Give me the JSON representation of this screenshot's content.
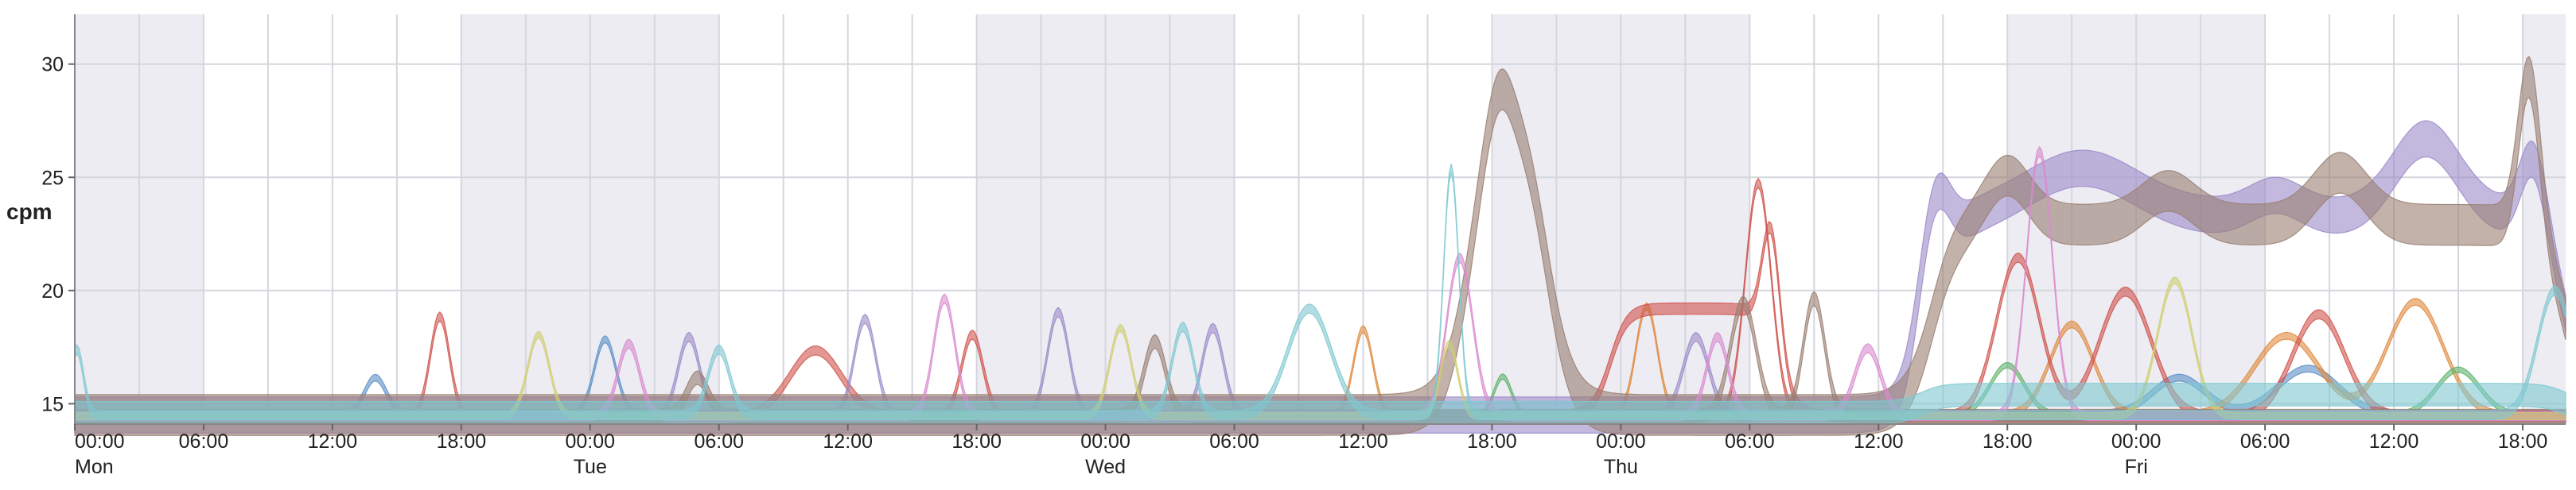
{
  "chart_data": {
    "type": "area",
    "title": "",
    "ylabel": "cpm",
    "xlabel": "",
    "x_unit": "hours since Monday 00:00",
    "xlim": [
      0,
      116
    ],
    "ylim": [
      14.1,
      32.2
    ],
    "yticks": [
      15,
      20,
      25,
      30
    ],
    "xticks": [
      {
        "hour": 0,
        "label": "00:00",
        "day": "Mon"
      },
      {
        "hour": 6,
        "label": "06:00",
        "day": ""
      },
      {
        "hour": 12,
        "label": "12:00",
        "day": ""
      },
      {
        "hour": 18,
        "label": "18:00",
        "day": ""
      },
      {
        "hour": 24,
        "label": "00:00",
        "day": "Tue"
      },
      {
        "hour": 30,
        "label": "06:00",
        "day": ""
      },
      {
        "hour": 36,
        "label": "12:00",
        "day": ""
      },
      {
        "hour": 42,
        "label": "18:00",
        "day": ""
      },
      {
        "hour": 48,
        "label": "00:00",
        "day": "Wed"
      },
      {
        "hour": 54,
        "label": "06:00",
        "day": ""
      },
      {
        "hour": 60,
        "label": "12:00",
        "day": ""
      },
      {
        "hour": 66,
        "label": "18:00",
        "day": ""
      },
      {
        "hour": 72,
        "label": "00:00",
        "day": "Thu"
      },
      {
        "hour": 78,
        "label": "06:00",
        "day": ""
      },
      {
        "hour": 84,
        "label": "12:00",
        "day": ""
      },
      {
        "hour": 90,
        "label": "18:00",
        "day": ""
      },
      {
        "hour": 96,
        "label": "00:00",
        "day": "Fri"
      },
      {
        "hour": 102,
        "label": "06:00",
        "day": ""
      },
      {
        "hour": 108,
        "label": "12:00",
        "day": ""
      },
      {
        "hour": 114,
        "label": "18:00",
        "day": ""
      }
    ],
    "night_bands": [
      [
        0,
        6
      ],
      [
        18,
        30
      ],
      [
        42,
        54
      ],
      [
        66,
        78
      ],
      [
        90,
        102
      ],
      [
        114,
        116
      ]
    ],
    "grid": true,
    "legend": "none",
    "background_colors": {
      "night": "#ececf2",
      "day": "#ffffff",
      "grid": "#d6d6de"
    },
    "series": [
      {
        "color": "#5b8fc7",
        "base": 14.55,
        "width": 0.15,
        "bumps": [
          [
            14,
            0.5,
            1.6
          ],
          [
            24.7,
            0.5,
            3.3
          ],
          [
            98,
            1.2,
            1.6
          ],
          [
            104,
            1.4,
            2.0
          ]
        ]
      },
      {
        "color": "#e08a3e",
        "base": 14.5,
        "width": 0.15,
        "bumps": [
          [
            60,
            0.45,
            3.8
          ],
          [
            73.2,
            0.5,
            4.8
          ],
          [
            93,
            1.0,
            4.0
          ],
          [
            103,
            1.5,
            3.5
          ],
          [
            109,
            1.3,
            5.0
          ]
        ]
      },
      {
        "color": "#5fb36a",
        "base": 14.5,
        "width": 0.12,
        "bumps": [
          [
            66.5,
            0.4,
            1.7
          ],
          [
            90,
            0.8,
            2.2
          ],
          [
            111,
            1.0,
            2.0
          ]
        ]
      },
      {
        "color": "#d0544d",
        "base": 14.45,
        "width": 0.2,
        "bumps": [
          [
            17,
            0.45,
            4.4
          ],
          [
            34.5,
            1.2,
            2.9
          ],
          [
            41.8,
            0.5,
            3.6
          ],
          [
            78.4,
            0.6,
            10.3
          ],
          [
            90.5,
            1.0,
            7.0
          ],
          [
            95.5,
            1.2,
            5.5
          ],
          [
            104.5,
            1.2,
            4.5
          ]
        ]
      },
      {
        "color": "#d0544d",
        "base": 14.45,
        "width": 0.25,
        "plateaus": [
          [
            71.5,
            79.4,
            19.2,
            0.4
          ]
        ],
        "bumps": [
          [
            79,
            0.4,
            4.8
          ]
        ]
      },
      {
        "color": "#9b8bc8",
        "base": 14.45,
        "width": 0.2,
        "bumps": [
          [
            28.6,
            0.5,
            3.5
          ],
          [
            36.8,
            0.5,
            4.3
          ],
          [
            45.8,
            0.5,
            4.6
          ],
          [
            53,
            0.5,
            3.9
          ],
          [
            75.5,
            0.6,
            3.5
          ]
        ]
      },
      {
        "color": "#9b8bc8",
        "base": 14.5,
        "width": 0.8,
        "plateaus": [
          [
            86.5,
            116,
            23.2,
            0.6
          ]
        ],
        "bumps": [
          [
            86.5,
            0.7,
            4.8
          ],
          [
            93.5,
            2.5,
            2.2
          ],
          [
            102.5,
            1.2,
            1.0
          ],
          [
            109.5,
            1.5,
            3.5
          ],
          [
            114.5,
            0.6,
            3.2
          ]
        ]
      },
      {
        "color": "#9a7f72",
        "base": 14.45,
        "width": 0.3,
        "bumps": [
          [
            29,
            0.5,
            1.7
          ],
          [
            50.3,
            0.5,
            3.3
          ],
          [
            77.7,
            0.6,
            5.0
          ],
          [
            81,
            0.5,
            5.2
          ]
        ]
      },
      {
        "color": "#9a7f72",
        "base": 14.5,
        "width": 0.9,
        "plateaus": [
          [
            65,
            68.5,
            28.5,
            0.6
          ],
          [
            86.5,
            116,
            22.9,
            0.6
          ]
        ],
        "bumps": [
          [
            66.3,
            0.6,
            2.0
          ],
          [
            90,
            1.0,
            2.2
          ],
          [
            97.5,
            1.2,
            1.5
          ],
          [
            105.5,
            1.2,
            2.3
          ],
          [
            114.3,
            0.5,
            7.0
          ]
        ]
      },
      {
        "color": "#d98bcf",
        "base": 14.45,
        "width": 0.2,
        "bumps": [
          [
            25.8,
            0.5,
            3.2
          ],
          [
            40.5,
            0.5,
            5.2
          ],
          [
            64.5,
            0.6,
            7.0
          ],
          [
            76.5,
            0.5,
            3.5
          ],
          [
            83.5,
            0.6,
            3.0
          ],
          [
            91.5,
            0.6,
            11.7
          ]
        ]
      },
      {
        "color": "#cfcf70",
        "base": 14.45,
        "width": 0.15,
        "bumps": [
          [
            21.6,
            0.5,
            3.6
          ],
          [
            48.7,
            0.5,
            3.9
          ],
          [
            64,
            0.4,
            3.2
          ],
          [
            97.8,
            0.8,
            6.0
          ]
        ]
      },
      {
        "color": "#7fc8d0",
        "base": 14.5,
        "width": 0.2,
        "bumps": [
          [
            0.1,
            0.3,
            2.9
          ],
          [
            30,
            0.5,
            2.9
          ],
          [
            51.6,
            0.5,
            3.9
          ],
          [
            57.5,
            1.0,
            4.7
          ],
          [
            64.1,
            0.35,
            10.9
          ],
          [
            115.5,
            0.8,
            5.5
          ]
        ]
      },
      {
        "color": "#7fc8d0",
        "base": 14.6,
        "width": 0.5,
        "plateaus": [
          [
            86,
            116,
            15.4,
            0.5
          ]
        ],
        "bumps": []
      }
    ]
  }
}
